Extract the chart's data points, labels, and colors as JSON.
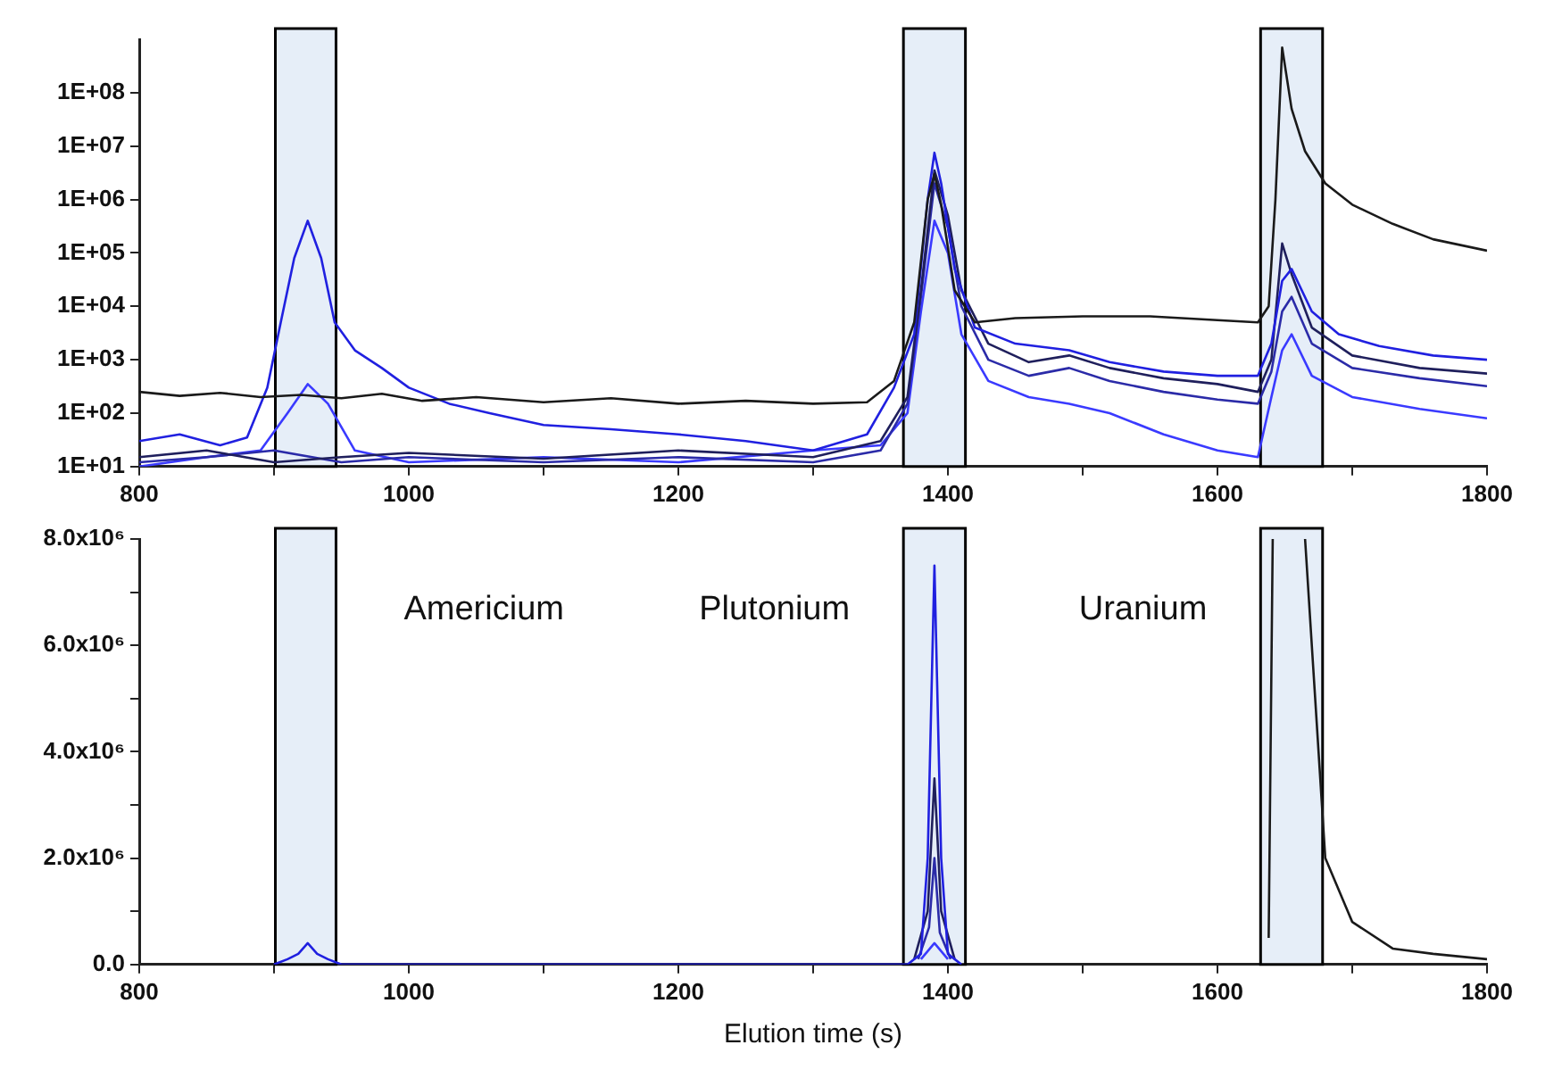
{
  "chart_data": [
    {
      "type": "line",
      "log": "y",
      "xlim": [
        800,
        1800
      ],
      "ylim": [
        10,
        1000000000
      ],
      "xticks": [
        800,
        {
          "value": 900,
          "label": null
        },
        1000,
        {
          "value": 1100,
          "label": null
        },
        1200,
        {
          "value": 1300,
          "label": null
        },
        1400,
        {
          "value": 1500,
          "label": null
        },
        1600,
        {
          "value": 1700,
          "label": null
        },
        1800
      ],
      "yticks": [
        {
          "value": 10,
          "label": "1E+01"
        },
        {
          "value": 100,
          "label": "1E+02"
        },
        {
          "value": 1000,
          "label": "1E+03"
        },
        {
          "value": 10000,
          "label": "1E+04"
        },
        {
          "value": 100000,
          "label": "1E+05"
        },
        {
          "value": 1000000,
          "label": "1E+06"
        },
        {
          "value": 10000000,
          "label": "1E+07"
        },
        {
          "value": 100000000,
          "label": "1E+08"
        }
      ],
      "bands": [
        {
          "axis": "x",
          "from": 901,
          "to": 946,
          "color": "#e6eef8"
        },
        {
          "axis": "x",
          "from": 1367,
          "to": 1413,
          "color": "#e6eef8"
        },
        {
          "axis": "x",
          "from": 1632,
          "to": 1678,
          "color": "#e6eef8"
        }
      ],
      "series": [
        {
          "color": "#1a1a1a",
          "x": [
            800,
            830,
            860,
            890,
            920,
            950,
            980,
            1010,
            1050,
            1100,
            1150,
            1200,
            1250,
            1300,
            1340,
            1360,
            1375,
            1385,
            1390,
            1395,
            1405,
            1420,
            1450,
            1500,
            1550,
            1600,
            1630,
            1638,
            1643,
            1648,
            1655,
            1665,
            1680,
            1700,
            1730,
            1760,
            1800
          ],
          "values": [
            250,
            210,
            240,
            200,
            220,
            190,
            230,
            170,
            200,
            160,
            190,
            150,
            170,
            150,
            160,
            400,
            5000,
            1000000,
            3000000,
            800000,
            20000,
            5000,
            6000,
            6500,
            6500,
            5500,
            5000,
            10000,
            1000000,
            700000000,
            50000000,
            8000000,
            2000000,
            800000,
            350000,
            180000,
            110000
          ]
        },
        {
          "color": "#2020e0",
          "x": [
            800,
            830,
            860,
            880,
            895,
            905,
            915,
            925,
            935,
            945,
            960,
            980,
            1000,
            1030,
            1060,
            1100,
            1150,
            1200,
            1250,
            1300,
            1340,
            1360,
            1375,
            1385,
            1390,
            1395,
            1405,
            1420,
            1450,
            1490,
            1520,
            1560,
            1600,
            1630,
            1640,
            1648,
            1655,
            1670,
            1690,
            1720,
            1760,
            1800
          ],
          "values": [
            30,
            40,
            25,
            35,
            300,
            5000,
            80000,
            400000,
            80000,
            5000,
            1500,
            700,
            300,
            150,
            100,
            60,
            50,
            40,
            30,
            20,
            40,
            300,
            3000,
            1000000,
            7500000,
            2000000,
            50000,
            4000,
            2000,
            1500,
            900,
            600,
            500,
            500,
            2000,
            30000,
            50000,
            8000,
            3000,
            1800,
            1200,
            1000
          ]
        },
        {
          "color": "#1f1f5c",
          "x": [
            800,
            850,
            900,
            950,
            1000,
            1100,
            1200,
            1300,
            1350,
            1370,
            1380,
            1390,
            1400,
            1410,
            1430,
            1460,
            1490,
            1520,
            1560,
            1600,
            1630,
            1640,
            1648,
            1655,
            1670,
            1700,
            1750,
            1800
          ],
          "values": [
            15,
            20,
            12,
            15,
            18,
            14,
            20,
            15,
            30,
            200,
            20000,
            3500000,
            500000,
            20000,
            2000,
            900,
            1200,
            700,
            450,
            350,
            250,
            1000,
            150000,
            40000,
            4000,
            1200,
            700,
            550
          ]
        },
        {
          "color": "#2b2ba8",
          "x": [
            800,
            850,
            900,
            950,
            1000,
            1100,
            1200,
            1300,
            1350,
            1370,
            1380,
            1390,
            1400,
            1410,
            1430,
            1460,
            1490,
            1520,
            1560,
            1600,
            1630,
            1640,
            1648,
            1655,
            1670,
            1700,
            1750,
            1800
          ],
          "values": [
            12,
            15,
            20,
            12,
            15,
            12,
            15,
            12,
            20,
            150,
            15000,
            2000000,
            300000,
            10000,
            1000,
            500,
            700,
            400,
            250,
            180,
            150,
            600,
            8000,
            15000,
            2000,
            700,
            450,
            320
          ]
        },
        {
          "color": "#3a3aff",
          "x": [
            800,
            850,
            890,
            910,
            925,
            940,
            960,
            1000,
            1100,
            1200,
            1300,
            1350,
            1370,
            1380,
            1390,
            1400,
            1410,
            1430,
            1460,
            1490,
            1520,
            1560,
            1600,
            1630,
            1640,
            1648,
            1655,
            1670,
            1700,
            1750,
            1800
          ],
          "values": [
            10,
            15,
            20,
            100,
            350,
            150,
            20,
            12,
            15,
            12,
            20,
            25,
            100,
            8000,
            400000,
            100000,
            3000,
            400,
            200,
            150,
            100,
            40,
            20,
            15,
            200,
            1500,
            3000,
            500,
            200,
            120,
            80
          ]
        }
      ]
    },
    {
      "type": "line",
      "xlabel": "Elution time (s)",
      "xlim": [
        800,
        1800
      ],
      "ylim": [
        0,
        8000000
      ],
      "xticks": [
        800,
        {
          "value": 900,
          "label": null
        },
        1000,
        {
          "value": 1100,
          "label": null
        },
        1200,
        {
          "value": 1300,
          "label": null
        },
        1400,
        {
          "value": 1500,
          "label": null
        },
        1600,
        {
          "value": 1700,
          "label": null
        },
        1800
      ],
      "yticks": [
        {
          "value": 0,
          "label": "0.0"
        },
        {
          "value": 1000000,
          "label": null
        },
        {
          "value": 2000000,
          "label": "2.0x10⁶"
        },
        {
          "value": 3000000,
          "label": null
        },
        {
          "value": 4000000,
          "label": "4.0x10⁶"
        },
        {
          "value": 5000000,
          "label": null
        },
        {
          "value": 6000000,
          "label": "6.0x10⁶"
        },
        {
          "value": 7000000,
          "label": null
        },
        {
          "value": 8000000,
          "label": "8.0x10⁶"
        }
      ],
      "bands": [
        {
          "axis": "x",
          "from": 901,
          "to": 946,
          "color": "#e6eef8"
        },
        {
          "axis": "x",
          "from": 1367,
          "to": 1413,
          "color": "#e6eef8"
        },
        {
          "axis": "x",
          "from": 1632,
          "to": 1678,
          "color": "#e6eef8"
        }
      ],
      "annotations": [
        "Americium",
        "Plutonium",
        "Uranium"
      ],
      "series": [
        {
          "color": "#2020e0",
          "x": [
            900,
            910,
            918,
            925,
            932,
            940,
            950,
            1370,
            1380,
            1385,
            1390,
            1395,
            1400,
            1410
          ],
          "values": [
            0,
            100000,
            200000,
            400000,
            200000,
            100000,
            0,
            0,
            200000,
            2000000,
            7500000,
            2000000,
            200000,
            0
          ]
        },
        {
          "color": "#1f1f5c",
          "x": [
            1375,
            1385,
            1390,
            1395,
            1405
          ],
          "values": [
            100000,
            1000000,
            3500000,
            1000000,
            100000
          ]
        },
        {
          "color": "#2b2ba8",
          "x": [
            1378,
            1386,
            1390,
            1394,
            1402
          ],
          "values": [
            100000,
            700000,
            2000000,
            600000,
            100000
          ]
        },
        {
          "color": "#3a3aff",
          "x": [
            1380,
            1390,
            1400
          ],
          "values": [
            100000,
            400000,
            100000
          ]
        },
        {
          "color": "#1a1a1a",
          "x": [
            1638,
            1641,
            1650,
            1665,
            1680,
            1700,
            1730,
            1760,
            1800
          ],
          "values": [
            500000,
            8000000,
            null,
            8000000,
            2000000,
            800000,
            300000,
            200000,
            100000
          ]
        }
      ]
    }
  ]
}
